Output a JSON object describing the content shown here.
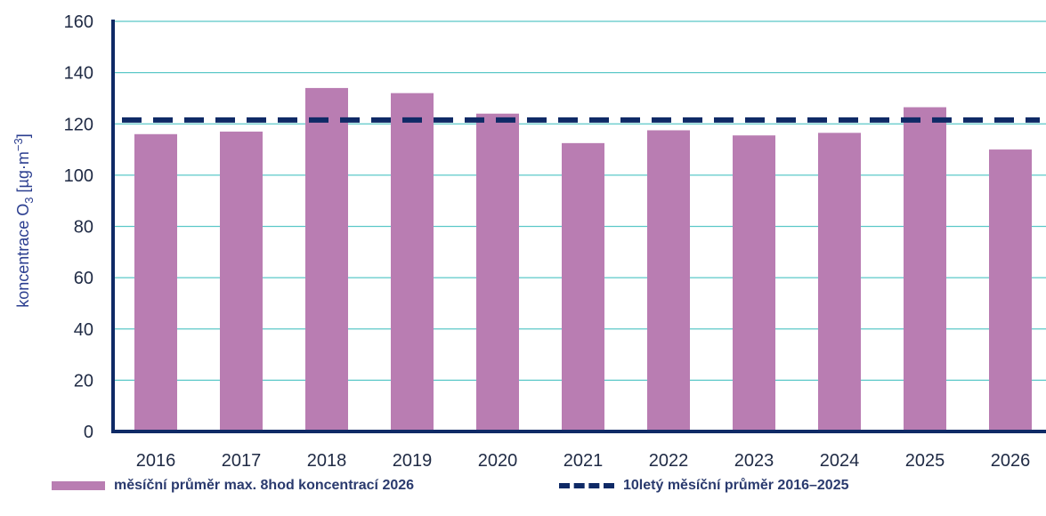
{
  "chart_data": {
    "type": "bar",
    "categories": [
      "2016",
      "2017",
      "2018",
      "2019",
      "2020",
      "2021",
      "2022",
      "2023",
      "2024",
      "2025",
      "2026"
    ],
    "series": [
      {
        "name": "měsíční průměr max. 8hod koncentrací 2026",
        "values": [
          116,
          117,
          134,
          132,
          124,
          112.5,
          117.5,
          115.5,
          116.5,
          126.5,
          110
        ],
        "color": "#b97db2"
      }
    ],
    "reference_line": {
      "name": "10letý měsíční průměr 2016–2025",
      "value": 121.5,
      "color": "#0f2a66",
      "style": "dashed"
    },
    "ylabel": "koncentrace O3 [µg·m−3]",
    "ylabel_parts": {
      "base": "koncentrace O",
      "sub": "3",
      "unit_open": " [µg·m",
      "sup": "−3",
      "unit_close": "]"
    },
    "ylim": [
      0,
      160
    ],
    "yticks": [
      "0",
      "20",
      "40",
      "60",
      "80",
      "100",
      "120",
      "140",
      "160"
    ],
    "grid": true,
    "grid_color": "#5bc8c8",
    "axis_color": "#0f2a66",
    "legend_position": "bottom"
  }
}
